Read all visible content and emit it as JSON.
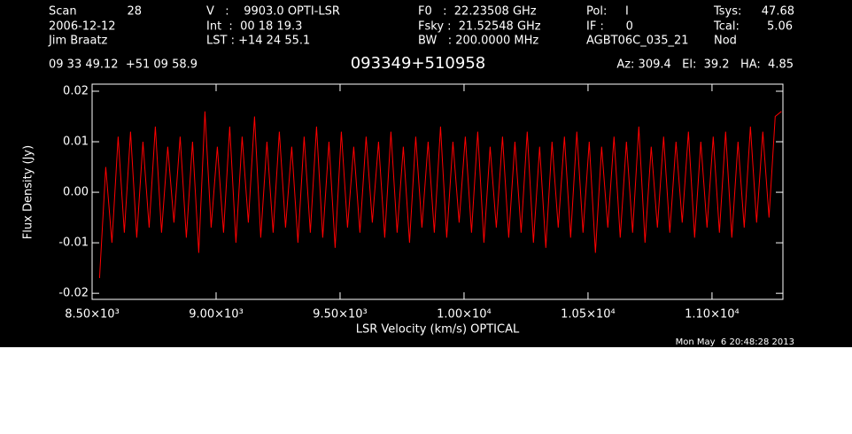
{
  "header": {
    "scan_label": "Scan",
    "scan": "28",
    "date": "2006-12-12",
    "observer": "Jim Braatz",
    "velocity": "V   :    9903.0 OPTI-LSR",
    "int": "Int  :  00 18 19.3",
    "lst": "LST : +14 24 55.1",
    "f0": "F0   :  22.23508 GHz",
    "fsky": "Fsky :  21.52548 GHz",
    "bw": "BW   : 200.0000 MHz",
    "pol": "Pol:     I",
    "if": "IF :      0",
    "project": "AGBT06C_035_21",
    "tsys_label": "Tsys:",
    "tsys": "47.68",
    "tcal_label": "Tcal:",
    "tcal": "5.06",
    "procedure": "Nod",
    "coords": "09 33 49.12  +51 09 58.9",
    "source": "093349+510958",
    "azel": "Az: 309.4   El:  39.2   HA:  4.85",
    "timestamp": "Mon May  6 20:48:28 2013"
  },
  "chart_data": {
    "type": "line",
    "xlabel": "LSR Velocity (km/s) OPTICAL",
    "ylabel": "Flux Density (Jy)",
    "color": "#ff0000",
    "x": [
      8530,
      8555,
      8580,
      8605,
      8630,
      8655,
      8680,
      8705,
      8730,
      8755,
      8780,
      8805,
      8830,
      8855,
      8880,
      8905,
      8930,
      8955,
      8980,
      9005,
      9030,
      9055,
      9080,
      9105,
      9130,
      9155,
      9180,
      9205,
      9230,
      9255,
      9280,
      9305,
      9330,
      9355,
      9380,
      9405,
      9430,
      9455,
      9480,
      9505,
      9530,
      9555,
      9580,
      9605,
      9630,
      9655,
      9680,
      9705,
      9730,
      9755,
      9780,
      9805,
      9830,
      9855,
      9880,
      9905,
      9930,
      9955,
      9980,
      10005,
      10030,
      10055,
      10080,
      10105,
      10130,
      10155,
      10180,
      10205,
      10230,
      10255,
      10280,
      10305,
      10330,
      10355,
      10380,
      10405,
      10430,
      10455,
      10480,
      10505,
      10530,
      10555,
      10580,
      10605,
      10630,
      10655,
      10680,
      10705,
      10730,
      10755,
      10780,
      10805,
      10830,
      10855,
      10880,
      10905,
      10930,
      10955,
      10980,
      11005,
      11030,
      11055,
      11080,
      11105,
      11130,
      11155,
      11180,
      11205,
      11230,
      11255,
      11280
    ],
    "values": [
      -0.017,
      0.005,
      -0.01,
      0.011,
      -0.008,
      0.012,
      -0.009,
      0.01,
      -0.007,
      0.013,
      -0.008,
      0.009,
      -0.006,
      0.011,
      -0.009,
      0.01,
      -0.012,
      0.016,
      -0.007,
      0.009,
      -0.008,
      0.013,
      -0.01,
      0.011,
      -0.006,
      0.015,
      -0.009,
      0.01,
      -0.008,
      0.012,
      -0.007,
      0.009,
      -0.01,
      0.011,
      -0.008,
      0.013,
      -0.009,
      0.01,
      -0.011,
      0.012,
      -0.007,
      0.009,
      -0.008,
      0.011,
      -0.006,
      0.01,
      -0.009,
      0.012,
      -0.008,
      0.009,
      -0.01,
      0.011,
      -0.007,
      0.01,
      -0.008,
      0.013,
      -0.009,
      0.01,
      -0.006,
      0.011,
      -0.008,
      0.012,
      -0.01,
      0.009,
      -0.007,
      0.011,
      -0.009,
      0.01,
      -0.008,
      0.012,
      -0.01,
      0.009,
      -0.011,
      0.01,
      -0.007,
      0.011,
      -0.009,
      0.012,
      -0.008,
      0.01,
      -0.012,
      0.009,
      -0.007,
      0.011,
      -0.009,
      0.01,
      -0.008,
      0.013,
      -0.01,
      0.009,
      -0.007,
      0.011,
      -0.008,
      0.01,
      -0.006,
      0.012,
      -0.009,
      0.01,
      -0.007,
      0.011,
      -0.008,
      0.012,
      -0.009,
      0.01,
      -0.007,
      0.013,
      -0.006,
      0.012,
      -0.005,
      0.015,
      0.016
    ],
    "xlim": [
      8500,
      11286
    ],
    "ylim": [
      -0.0212,
      0.0214
    ],
    "xticks": [
      {
        "value": 8500,
        "label": "8.50×10³"
      },
      {
        "value": 9000,
        "label": "9.00×10³"
      },
      {
        "value": 9500,
        "label": "9.50×10³"
      },
      {
        "value": 10000,
        "label": "1.00×10⁴"
      },
      {
        "value": 10500,
        "label": "1.05×10⁴"
      },
      {
        "value": 11000,
        "label": "1.10×10⁴"
      }
    ],
    "yticks": [
      -0.02,
      -0.01,
      {
        "value": 0,
        "label": "0.00"
      },
      0.01,
      0.02
    ]
  }
}
